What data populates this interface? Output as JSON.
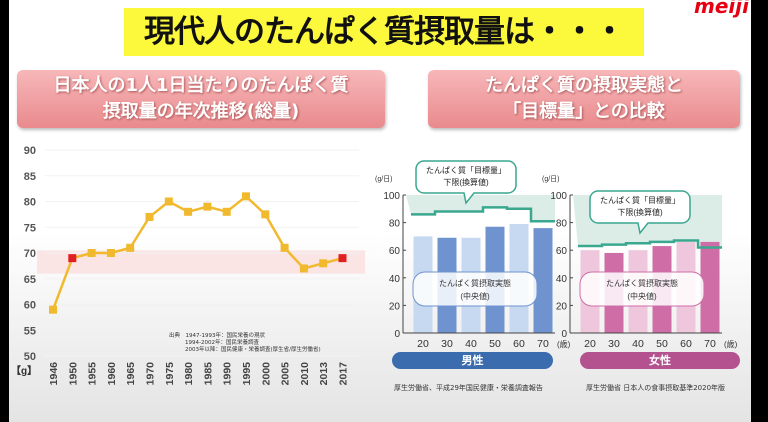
{
  "title": "現代人のたんぱく質摂取量は・・・",
  "logo": "meiji",
  "left_header": [
    "日本人の1人1日当たりのたんぱく質",
    "摂取量の年次推移(総量)"
  ],
  "right_header": [
    "たんぱく質の摂取実態と",
    "「目標量」との比較"
  ],
  "chart_data": [
    {
      "type": "line",
      "title": "日本人の1人1日当たりのたんぱく質摂取量の年次推移(総量)",
      "ylabel": "【g】",
      "ylim": [
        50,
        90
      ],
      "yticks": [
        50,
        55,
        60,
        65,
        70,
        75,
        80,
        85,
        90
      ],
      "categories": [
        "1946",
        "1950",
        "1955",
        "1960",
        "1965",
        "1970",
        "1975",
        "1980",
        "1985",
        "1990",
        "1995",
        "2000",
        "2005",
        "2010",
        "2013",
        "2017"
      ],
      "values": [
        59,
        69,
        70,
        70,
        71,
        77,
        80,
        78,
        79,
        78,
        81,
        77.5,
        71,
        67,
        68,
        69
      ],
      "highlighted": [
        "1950",
        "2017"
      ],
      "band": [
        66,
        70.5
      ],
      "line_color": "#f1b92e",
      "highlight_color": "#e02020",
      "band_color": "#fbe4e4",
      "source": [
        "出典　1947-1993年：国民栄養の現状",
        "1994-2002年：国民栄養調査",
        "2003年以降：国民健康・栄養調査(厚生省/厚生労働省)"
      ]
    },
    {
      "type": "bar",
      "title": "男性",
      "unit": "(g/日)",
      "xunit": "(歳)",
      "ylim": [
        0,
        100
      ],
      "yticks": [
        0,
        20,
        40,
        60,
        80,
        100
      ],
      "categories": [
        "20",
        "30",
        "40",
        "50",
        "60",
        "70"
      ],
      "values": [
        70,
        69,
        69,
        77,
        79,
        76
      ],
      "target_lower": [
        86,
        88,
        88,
        91,
        90,
        81
      ],
      "callout_target": [
        "たんぱく質「目標量」",
        "下限(換算値)"
      ],
      "callout_actual": [
        "たんぱく質摂取実態",
        "(中央値)"
      ],
      "colors": [
        "#c6d9f1",
        "#6f93cf"
      ],
      "pill_color": "#3a6cae",
      "source": "厚生労働省、平成29年国民健康・栄養調査報告"
    },
    {
      "type": "bar",
      "title": "女性",
      "unit": "(g/日)",
      "xunit": "(歳)",
      "ylim": [
        0,
        100
      ],
      "yticks": [
        0,
        20,
        40,
        60,
        80,
        100
      ],
      "categories": [
        "20",
        "30",
        "40",
        "50",
        "60",
        "70"
      ],
      "values": [
        60,
        58,
        60,
        63,
        66,
        66
      ],
      "target_lower": [
        63,
        64,
        65,
        66,
        67,
        62
      ],
      "callout_target": [
        "たんぱく質「目標量」",
        "下限(換算値)"
      ],
      "callout_actual": [
        "たんぱく質摂取実態",
        "(中央値)"
      ],
      "colors": [
        "#eec7dd",
        "#cf6ea6"
      ],
      "pill_color": "#b3528f",
      "source": "厚生労働省 日本人の食事摂取基準2020年版"
    }
  ]
}
